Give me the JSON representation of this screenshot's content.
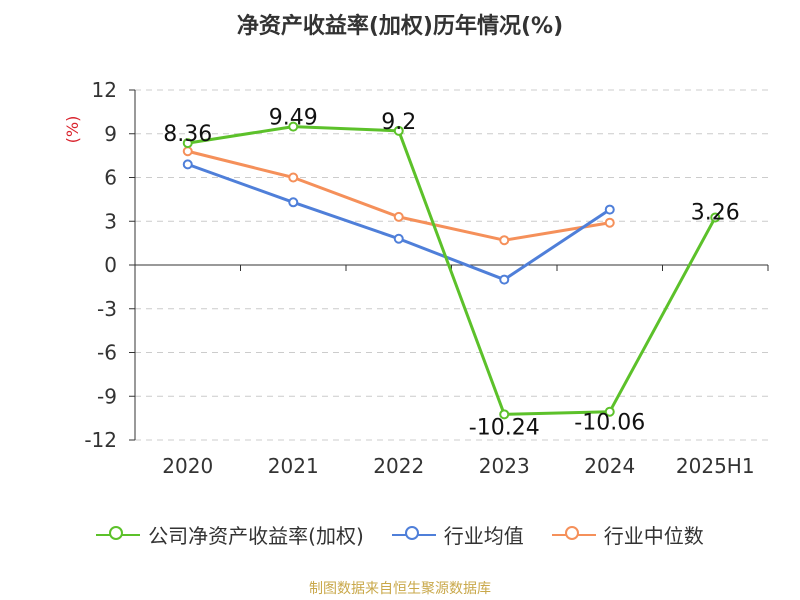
{
  "chart_data": {
    "type": "line",
    "title": "净资产收益率(加权)历年情况(%)",
    "ylabel": "(%)",
    "xlabel": "",
    "categories": [
      "2020",
      "2021",
      "2022",
      "2023",
      "2024",
      "2025H1"
    ],
    "ylim": [
      -12,
      12
    ],
    "yticks": [
      12,
      9,
      6,
      3,
      0,
      -3,
      -6,
      -9,
      -12
    ],
    "grid": true,
    "legend_position": "bottom",
    "series": [
      {
        "name": "公司净资产收益率(加权)",
        "color": "#5cc12a",
        "values": [
          8.36,
          9.49,
          9.2,
          -10.24,
          -10.06,
          3.26
        ],
        "data_labels": [
          "8.36",
          "9.49",
          "9.2",
          "-10.24",
          "-10.06",
          "3.26"
        ]
      },
      {
        "name": "行业均值",
        "color": "#4f7fd9",
        "values": [
          6.9,
          4.3,
          1.8,
          -1.0,
          3.8,
          null
        ]
      },
      {
        "name": "行业中位数",
        "color": "#f5905a",
        "values": [
          7.8,
          6.0,
          3.3,
          1.7,
          2.9,
          null
        ]
      }
    ]
  },
  "source_text": "制图数据来自恒生聚源数据库"
}
